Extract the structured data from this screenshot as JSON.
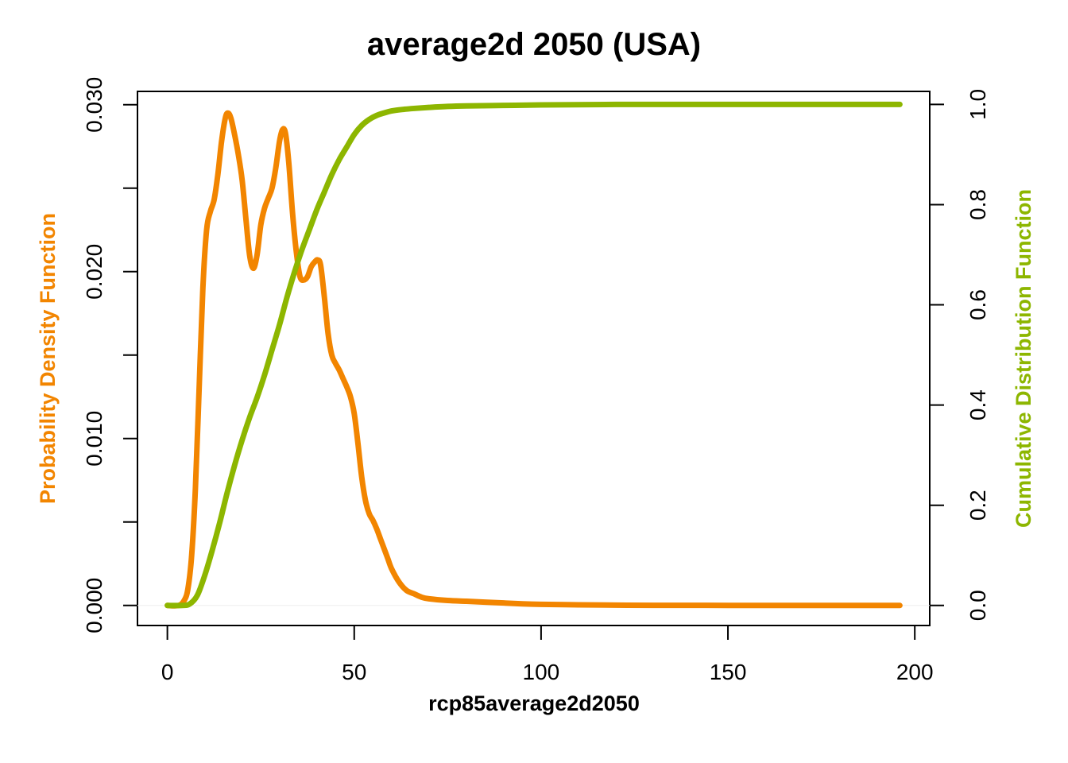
{
  "chart_data": {
    "type": "line",
    "title": "average2d 2050 (USA)",
    "xlabel": "rcp85average2d2050",
    "ylabel_left": "Probability Density Function",
    "ylabel_right": "Cumulative Distribution Function",
    "xlim": [
      -8,
      204
    ],
    "ylim_left": [
      -0.0012,
      0.0308
    ],
    "ylim_right": [
      -0.04,
      1.026
    ],
    "x_ticks": [
      0,
      50,
      100,
      150,
      200
    ],
    "y_left_ticks": [
      0.0,
      0.005,
      0.01,
      0.015,
      0.02,
      0.025,
      0.03
    ],
    "y_left_tick_labels": [
      "0.000",
      "0.010",
      "0.020",
      "0.030"
    ],
    "y_right_ticks": [
      0.0,
      0.2,
      0.4,
      0.6,
      0.8,
      1.0
    ],
    "y_right_tick_labels": [
      "0.0",
      "0.2",
      "0.4",
      "0.6",
      "0.8",
      "1.0"
    ],
    "grid": false,
    "colors": {
      "pdf": "#F28500",
      "cdf": "#8DB600"
    },
    "series": [
      {
        "name": "Probability Density Function",
        "axis": "left",
        "x": [
          0,
          3,
          4.5,
          5.5,
          6.5,
          7.5,
          8.5,
          9.5,
          10.5,
          11.5,
          12.5,
          13.5,
          14.5,
          15.5,
          16.2,
          17,
          18,
          19,
          20,
          21,
          22,
          23,
          24,
          25,
          26,
          27,
          28,
          29,
          30,
          30.8,
          31.6,
          32.5,
          33.5,
          34.5,
          35.5,
          36.5,
          37.5,
          38.5,
          39.5,
          40.2,
          41,
          42,
          43,
          44,
          45,
          46,
          47,
          48,
          49,
          50,
          51,
          52,
          53,
          54,
          55,
          56,
          57,
          58,
          59,
          60,
          62,
          64,
          66,
          68,
          70,
          75,
          80,
          85,
          90,
          95,
          100,
          110,
          120,
          130,
          150,
          170,
          196
        ],
        "values": [
          0.0,
          0.0,
          0.0003,
          0.001,
          0.003,
          0.007,
          0.013,
          0.019,
          0.0225,
          0.0236,
          0.0243,
          0.0258,
          0.0278,
          0.0292,
          0.0295,
          0.0292,
          0.0282,
          0.027,
          0.0255,
          0.0232,
          0.021,
          0.0202,
          0.021,
          0.0228,
          0.0238,
          0.0244,
          0.025,
          0.0262,
          0.0278,
          0.0285,
          0.0283,
          0.0265,
          0.0235,
          0.0212,
          0.0197,
          0.0195,
          0.0197,
          0.0203,
          0.0206,
          0.0207,
          0.0204,
          0.0185,
          0.0163,
          0.015,
          0.0145,
          0.0141,
          0.0136,
          0.0131,
          0.0125,
          0.0115,
          0.0097,
          0.0077,
          0.0063,
          0.0055,
          0.0051,
          0.0046,
          0.004,
          0.0034,
          0.0028,
          0.0022,
          0.0014,
          0.0009,
          0.0007,
          0.0005,
          0.0004,
          0.0003,
          0.00025,
          0.0002,
          0.00015,
          0.0001,
          7e-05,
          4e-05,
          2e-05,
          1e-05,
          5e-06,
          2e-06,
          0.0
        ]
      },
      {
        "name": "Cumulative Distribution Function",
        "axis": "right",
        "x": [
          0,
          4,
          6,
          8,
          10,
          12,
          14,
          16,
          18,
          20,
          22,
          24,
          26,
          28,
          30,
          32,
          34,
          36,
          38,
          40,
          42,
          44,
          46,
          48,
          50,
          52,
          54,
          56,
          58,
          60,
          63,
          66,
          70,
          75,
          80,
          90,
          100,
          120,
          150,
          196
        ],
        "values": [
          0.0,
          0.0,
          0.003,
          0.02,
          0.06,
          0.11,
          0.165,
          0.225,
          0.28,
          0.33,
          0.375,
          0.415,
          0.46,
          0.51,
          0.56,
          0.615,
          0.665,
          0.71,
          0.75,
          0.79,
          0.825,
          0.86,
          0.89,
          0.915,
          0.94,
          0.958,
          0.97,
          0.978,
          0.983,
          0.987,
          0.99,
          0.992,
          0.994,
          0.996,
          0.997,
          0.998,
          0.999,
          1.0,
          1.0,
          1.0
        ]
      }
    ]
  }
}
